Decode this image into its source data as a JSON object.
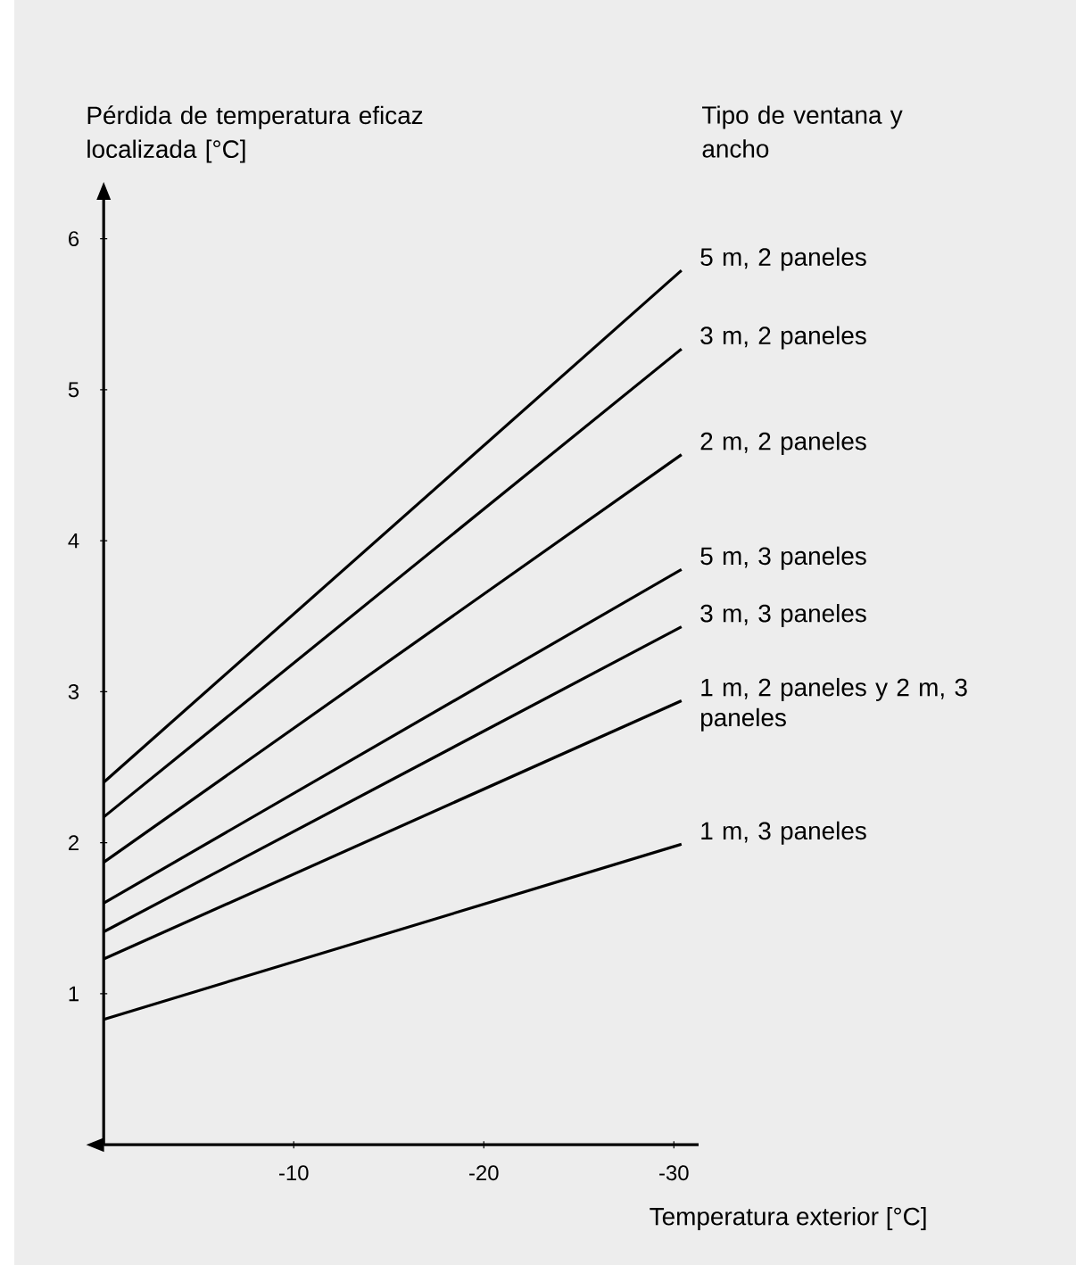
{
  "chart_data": {
    "type": "line",
    "ylabel": "Pérdida de temperatura eficaz localizada [°C]",
    "xlabel": "Temperatura exterior [°C]",
    "legend_title": "Tipo de ventana y ancho",
    "xlim": [
      0,
      -31.3
    ],
    "ylim": [
      0,
      6.26
    ],
    "xticks": [
      -10,
      -20,
      -30
    ],
    "yticks": [
      1,
      2,
      3,
      4,
      5,
      6
    ],
    "grid": false,
    "legend": "right",
    "marker": "none",
    "line_style": "solid",
    "x": [
      0,
      -30.4
    ],
    "series": [
      {
        "name": "5 m, 2 paneles",
        "color": "#000000",
        "values": [
          2.4,
          5.79
        ]
      },
      {
        "name": "3 m, 2 paneles",
        "color": "#000000",
        "values": [
          2.17,
          5.27
        ]
      },
      {
        "name": "2 m, 2 paneles",
        "color": "#000000",
        "values": [
          1.87,
          4.57
        ]
      },
      {
        "name": "5 m, 3 paneles",
        "color": "#000000",
        "values": [
          1.6,
          3.81
        ]
      },
      {
        "name": "3 m, 3 paneles",
        "color": "#000000",
        "values": [
          1.41,
          3.43
        ]
      },
      {
        "name": "1 m, 2 paneles y 2 m, 3 paneles",
        "color": "#000000",
        "values": [
          1.23,
          2.94
        ]
      },
      {
        "name": "1 m, 3 paneles",
        "color": "#000000",
        "values": [
          0.83,
          1.99
        ]
      }
    ]
  }
}
